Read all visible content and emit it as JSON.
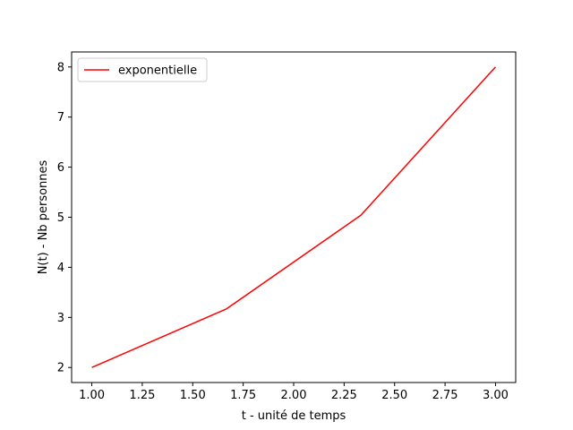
{
  "chart_data": {
    "type": "line",
    "title": "",
    "xlabel": "t - unité de temps",
    "ylabel": "N(t) - Nb personnes",
    "xlim": [
      0.9,
      3.1
    ],
    "ylim": [
      1.7,
      8.3
    ],
    "xticks": [
      1.0,
      1.25,
      1.5,
      1.75,
      2.0,
      2.25,
      2.5,
      2.75,
      3.0
    ],
    "xtick_labels": [
      "1.00",
      "1.25",
      "1.50",
      "1.75",
      "2.00",
      "2.25",
      "2.50",
      "2.75",
      "3.00"
    ],
    "yticks": [
      2,
      3,
      4,
      5,
      6,
      7,
      8
    ],
    "ytick_labels": [
      "2",
      "3",
      "4",
      "5",
      "6",
      "7",
      "8"
    ],
    "grid": false,
    "legend_position": "top-left",
    "series": [
      {
        "name": "exponentielle",
        "color": "#ff0000",
        "x": [
          1.0,
          1.667,
          2.333,
          3.0
        ],
        "y": [
          2.0,
          3.17,
          5.04,
          8.0
        ]
      }
    ]
  }
}
